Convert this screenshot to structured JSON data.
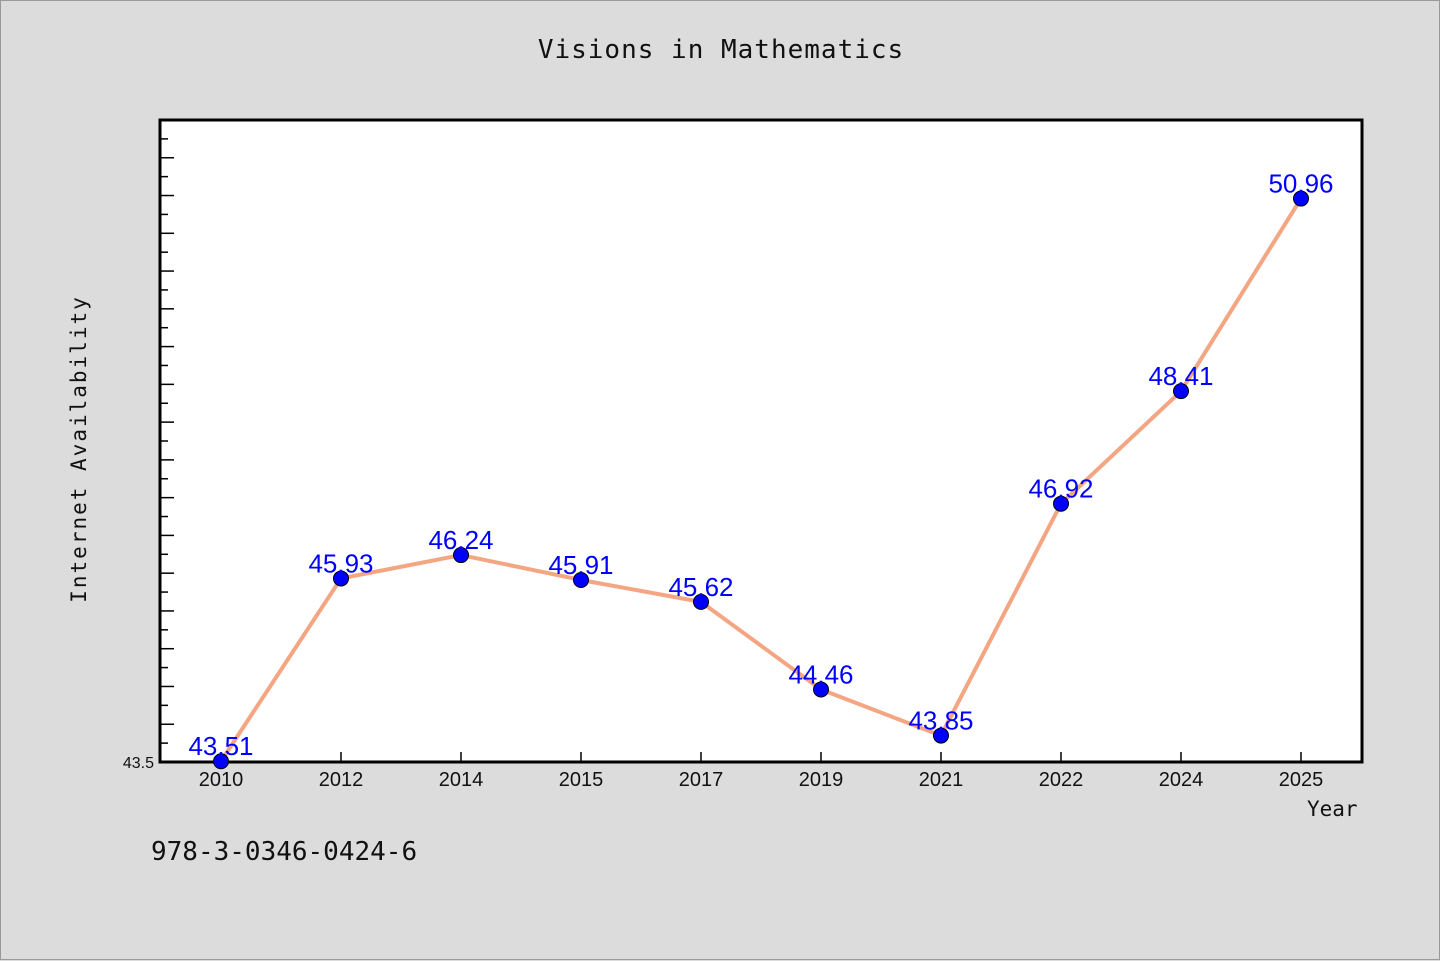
{
  "page": {
    "isbn": "978-3-0346-0424-6"
  },
  "chart_data": {
    "type": "line",
    "title": "Visions in Mathematics",
    "xlabel": "Year",
    "ylabel": "Internet Availability",
    "categories": [
      "2010",
      "2012",
      "2014",
      "2015",
      "2017",
      "2019",
      "2021",
      "2022",
      "2024",
      "2025"
    ],
    "series": [
      {
        "values": [
          43.51,
          45.93,
          46.24,
          45.91,
          45.62,
          44.46,
          43.85,
          46.92,
          48.41,
          50.96
        ]
      }
    ],
    "data_labels": [
      "43.51",
      "45.93",
      "46.24",
      "45.91",
      "45.62",
      "44.46",
      "43.85",
      "46.92",
      "48.41",
      "50.96"
    ],
    "ylim": [
      43.5,
      52.0
    ],
    "y_tick_labels": [
      "43.5"
    ],
    "grid": false,
    "legend": "none",
    "colors": {
      "line": "#f4a582",
      "marker": "#0000ff",
      "data_label": "#0000ff",
      "plot_bg": "#ffffff",
      "page_bg": "#dcdcdc"
    }
  }
}
